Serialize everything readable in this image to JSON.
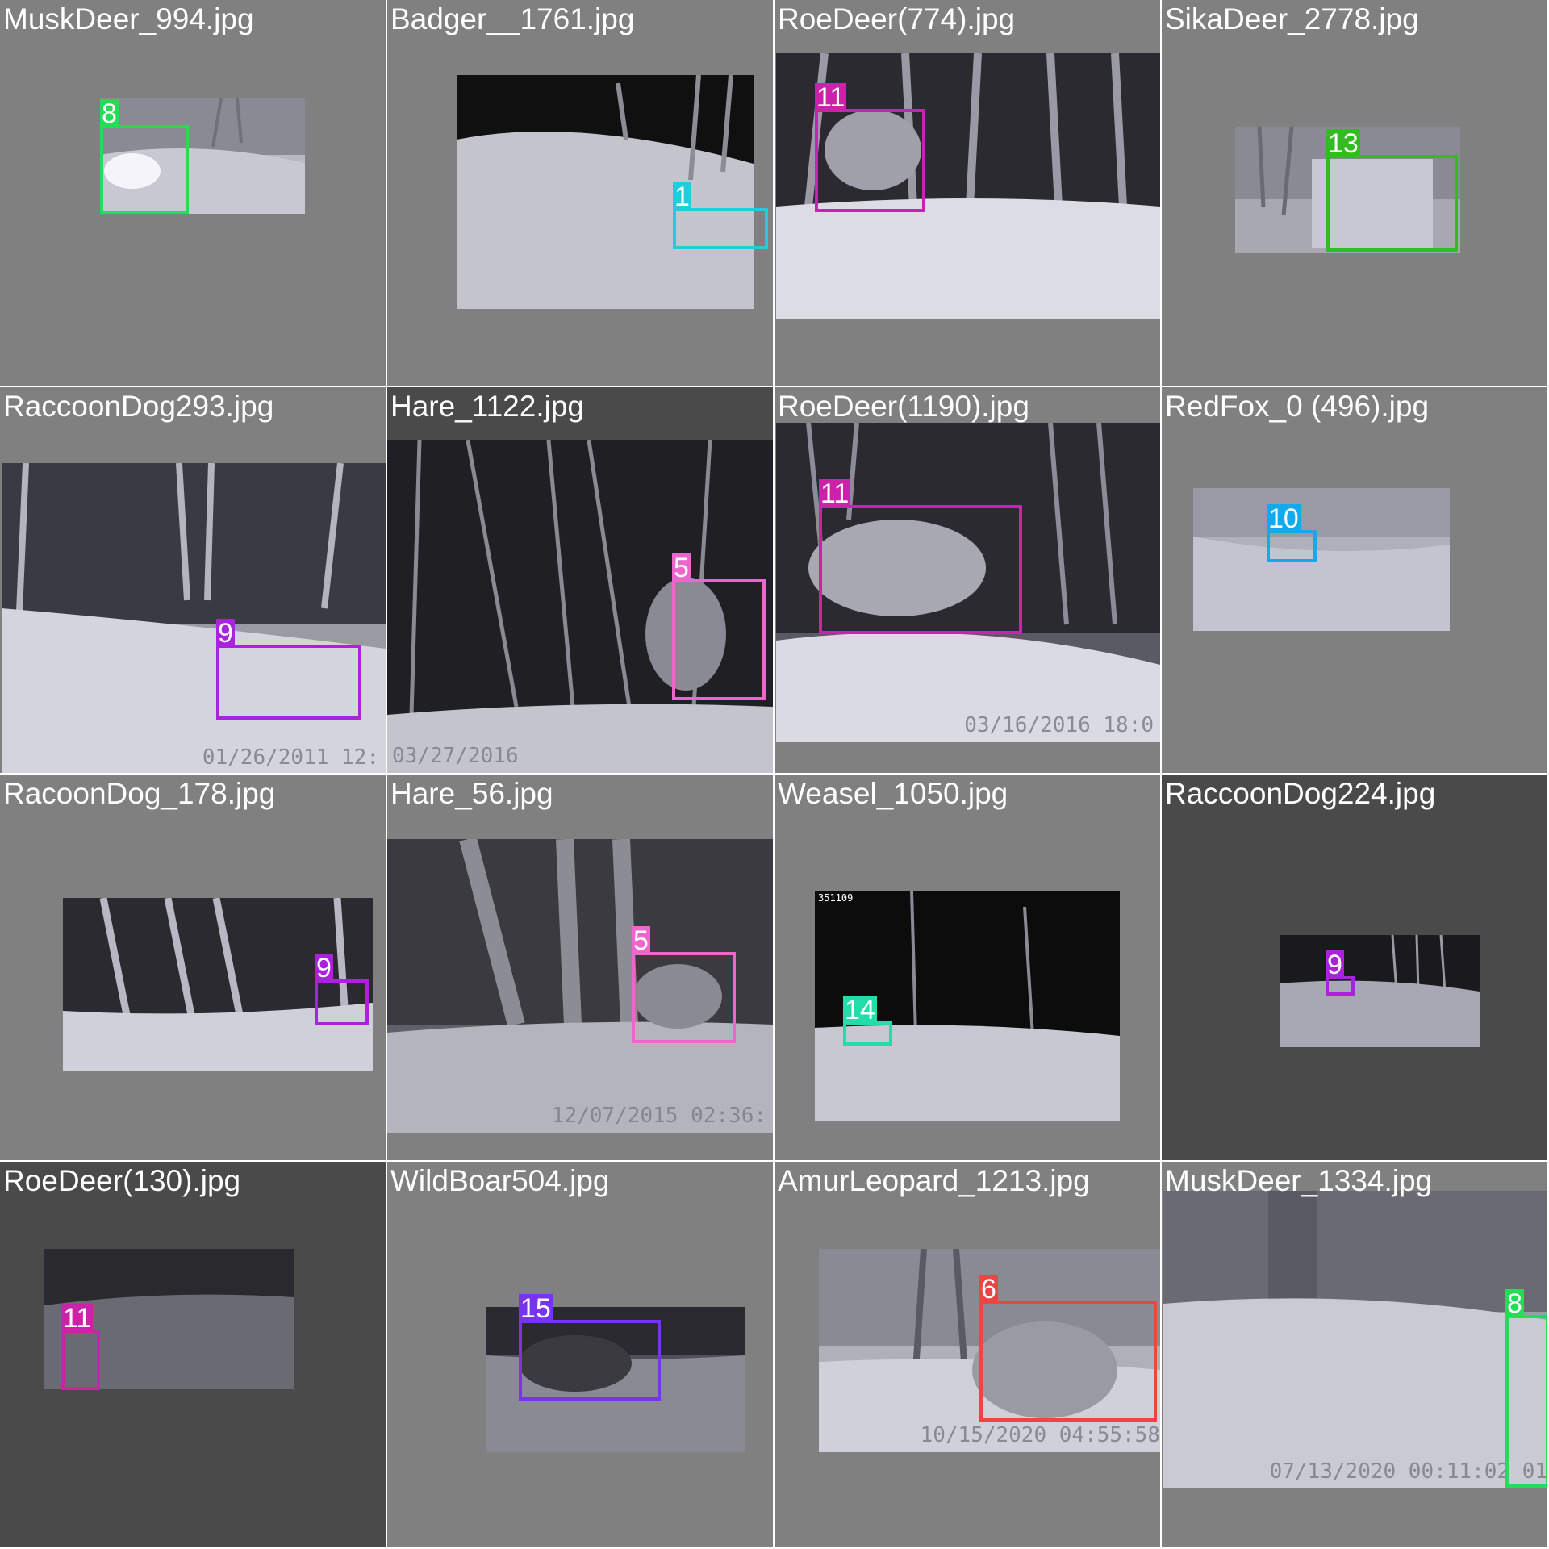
{
  "tiles": [
    {
      "filename": "MuskDeer_994.jpg",
      "label": "8",
      "color": "#22dd55"
    },
    {
      "filename": "Badger__1761.jpg",
      "label": "1",
      "color": "#22ccdd"
    },
    {
      "filename": "RoeDeer(774).jpg",
      "label": "11",
      "color": "#cc22aa"
    },
    {
      "filename": "SikaDeer_2778.jpg",
      "label": "13",
      "color": "#33bb22"
    },
    {
      "filename": "RaccoonDog293.jpg",
      "label": "9",
      "color": "#aa22dd",
      "stamp": "01/26/2011  12:"
    },
    {
      "filename": "Hare_1122.jpg",
      "label": "5",
      "color": "#ee66cc",
      "stamp": "03/27/2016"
    },
    {
      "filename": "RoeDeer(1190).jpg",
      "label": "11",
      "color": "#cc22aa",
      "stamp": "03/16/2016  18:0"
    },
    {
      "filename": "RedFox_0 (496).jpg",
      "label": "10",
      "color": "#11aaee"
    },
    {
      "filename": "RacoonDog_178.jpg",
      "label": "9",
      "color": "#aa22dd"
    },
    {
      "filename": "Hare_56.jpg",
      "label": "5",
      "color": "#ee66cc",
      "stamp": "12/07/2015  02:36:"
    },
    {
      "filename": "Weasel_1050.jpg",
      "label": "14",
      "color": "#22ddaa",
      "tag": "351109"
    },
    {
      "filename": "RaccoonDog224.jpg",
      "label": "9",
      "color": "#aa22dd"
    },
    {
      "filename": "RoeDeer(130).jpg",
      "label": "11",
      "color": "#cc22aa"
    },
    {
      "filename": "WildBoar504.jpg",
      "label": "15",
      "color": "#7733ee"
    },
    {
      "filename": "AmurLeopard_1213.jpg",
      "label": "6",
      "color": "#ee4444",
      "stamp": "10/15/2020  04:55:58"
    },
    {
      "filename": "MuskDeer_1334.jpg",
      "label": "8",
      "color": "#22dd55",
      "stamp": "07/13/2020 00:11:02  01"
    }
  ]
}
